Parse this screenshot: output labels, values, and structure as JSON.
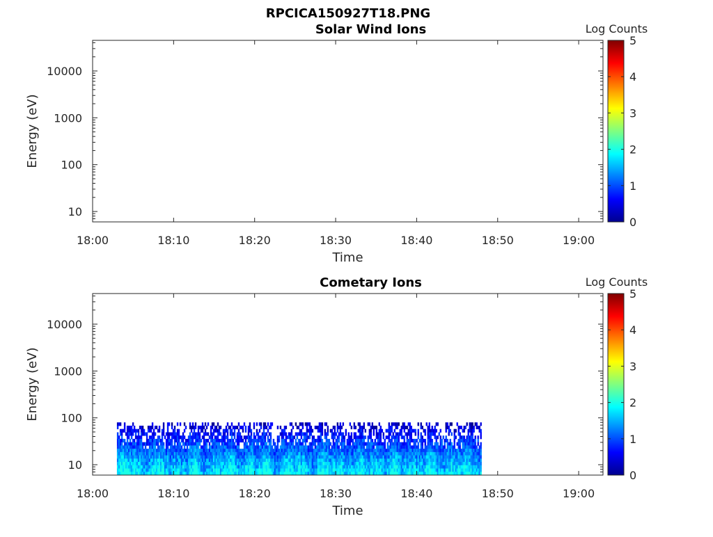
{
  "figure": {
    "title": "RPCICA150927T18.PNG"
  },
  "chart_data": [
    {
      "type": "heatmap",
      "title": "Solar Wind Ions",
      "xlabel": "Time",
      "ylabel": "Energy (eV)",
      "x_ticks": [
        "18:00",
        "18:10",
        "18:20",
        "18:30",
        "18:40",
        "18:50",
        "19:00"
      ],
      "x_range": [
        "18:00",
        "19:03"
      ],
      "y_scale": "log",
      "y_ticks": [
        "10",
        "100",
        "1000",
        "10000"
      ],
      "y_range": [
        6,
        45000
      ],
      "colorbar": {
        "label": "Log Counts",
        "range": [
          0,
          5
        ],
        "ticks": [
          "0",
          "1",
          "2",
          "3",
          "4",
          "5"
        ],
        "colormap": "jet"
      },
      "data_extent": null
    },
    {
      "type": "heatmap",
      "title": "Cometary Ions",
      "xlabel": "Time",
      "ylabel": "Energy (eV)",
      "x_ticks": [
        "18:00",
        "18:10",
        "18:20",
        "18:30",
        "18:40",
        "18:50",
        "19:00"
      ],
      "x_range": [
        "18:00",
        "19:03"
      ],
      "y_scale": "log",
      "y_ticks": [
        "10",
        "100",
        "1000",
        "10000"
      ],
      "y_range": [
        6,
        45000
      ],
      "colorbar": {
        "label": "Log Counts",
        "range": [
          0,
          5
        ],
        "ticks": [
          "0",
          "1",
          "2",
          "3",
          "4",
          "5"
        ],
        "colormap": "jet"
      },
      "data_extent": {
        "time_start": "18:03",
        "time_end": "18:48",
        "energy_min": 6,
        "energy_max": 80,
        "log_counts_range": [
          0,
          2
        ]
      }
    }
  ]
}
